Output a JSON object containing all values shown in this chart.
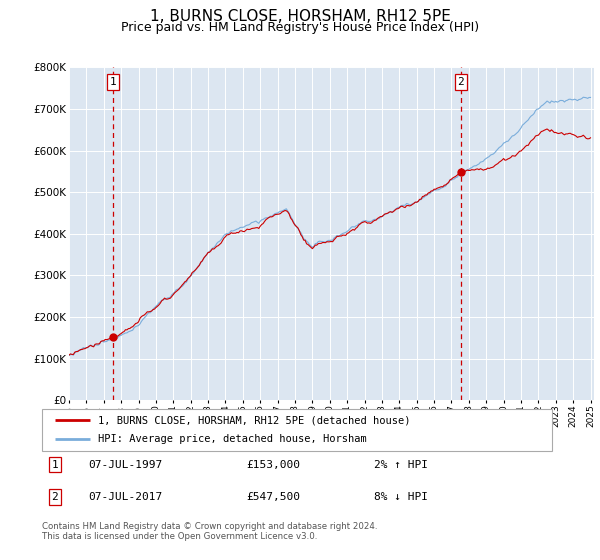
{
  "title": "1, BURNS CLOSE, HORSHAM, RH12 5PE",
  "subtitle": "Price paid vs. HM Land Registry's House Price Index (HPI)",
  "title_fontsize": 11,
  "subtitle_fontsize": 9,
  "bg_color": "#dce6f1",
  "line1_color": "#cc0000",
  "line2_color": "#7aaddb",
  "marker_color": "#cc0000",
  "vline_color": "#cc0000",
  "yticks": [
    0,
    100000,
    200000,
    300000,
    400000,
    500000,
    600000,
    700000,
    800000
  ],
  "ytick_labels": [
    "£0",
    "£100K",
    "£200K",
    "£300K",
    "£400K",
    "£500K",
    "£600K",
    "£700K",
    "£800K"
  ],
  "purchase1_year": 1997.54,
  "purchase1_price": 153000,
  "purchase1_label": "1",
  "purchase2_year": 2017.54,
  "purchase2_price": 547500,
  "purchase2_label": "2",
  "legend_line1": "1, BURNS CLOSE, HORSHAM, RH12 5PE (detached house)",
  "legend_line2": "HPI: Average price, detached house, Horsham",
  "note1_label": "1",
  "note1_date": "07-JUL-1997",
  "note1_price": "£153,000",
  "note1_hpi": "2% ↑ HPI",
  "note2_label": "2",
  "note2_date": "07-JUL-2017",
  "note2_price": "£547,500",
  "note2_hpi": "8% ↓ HPI",
  "footer": "Contains HM Land Registry data © Crown copyright and database right 2024.\nThis data is licensed under the Open Government Licence v3.0."
}
